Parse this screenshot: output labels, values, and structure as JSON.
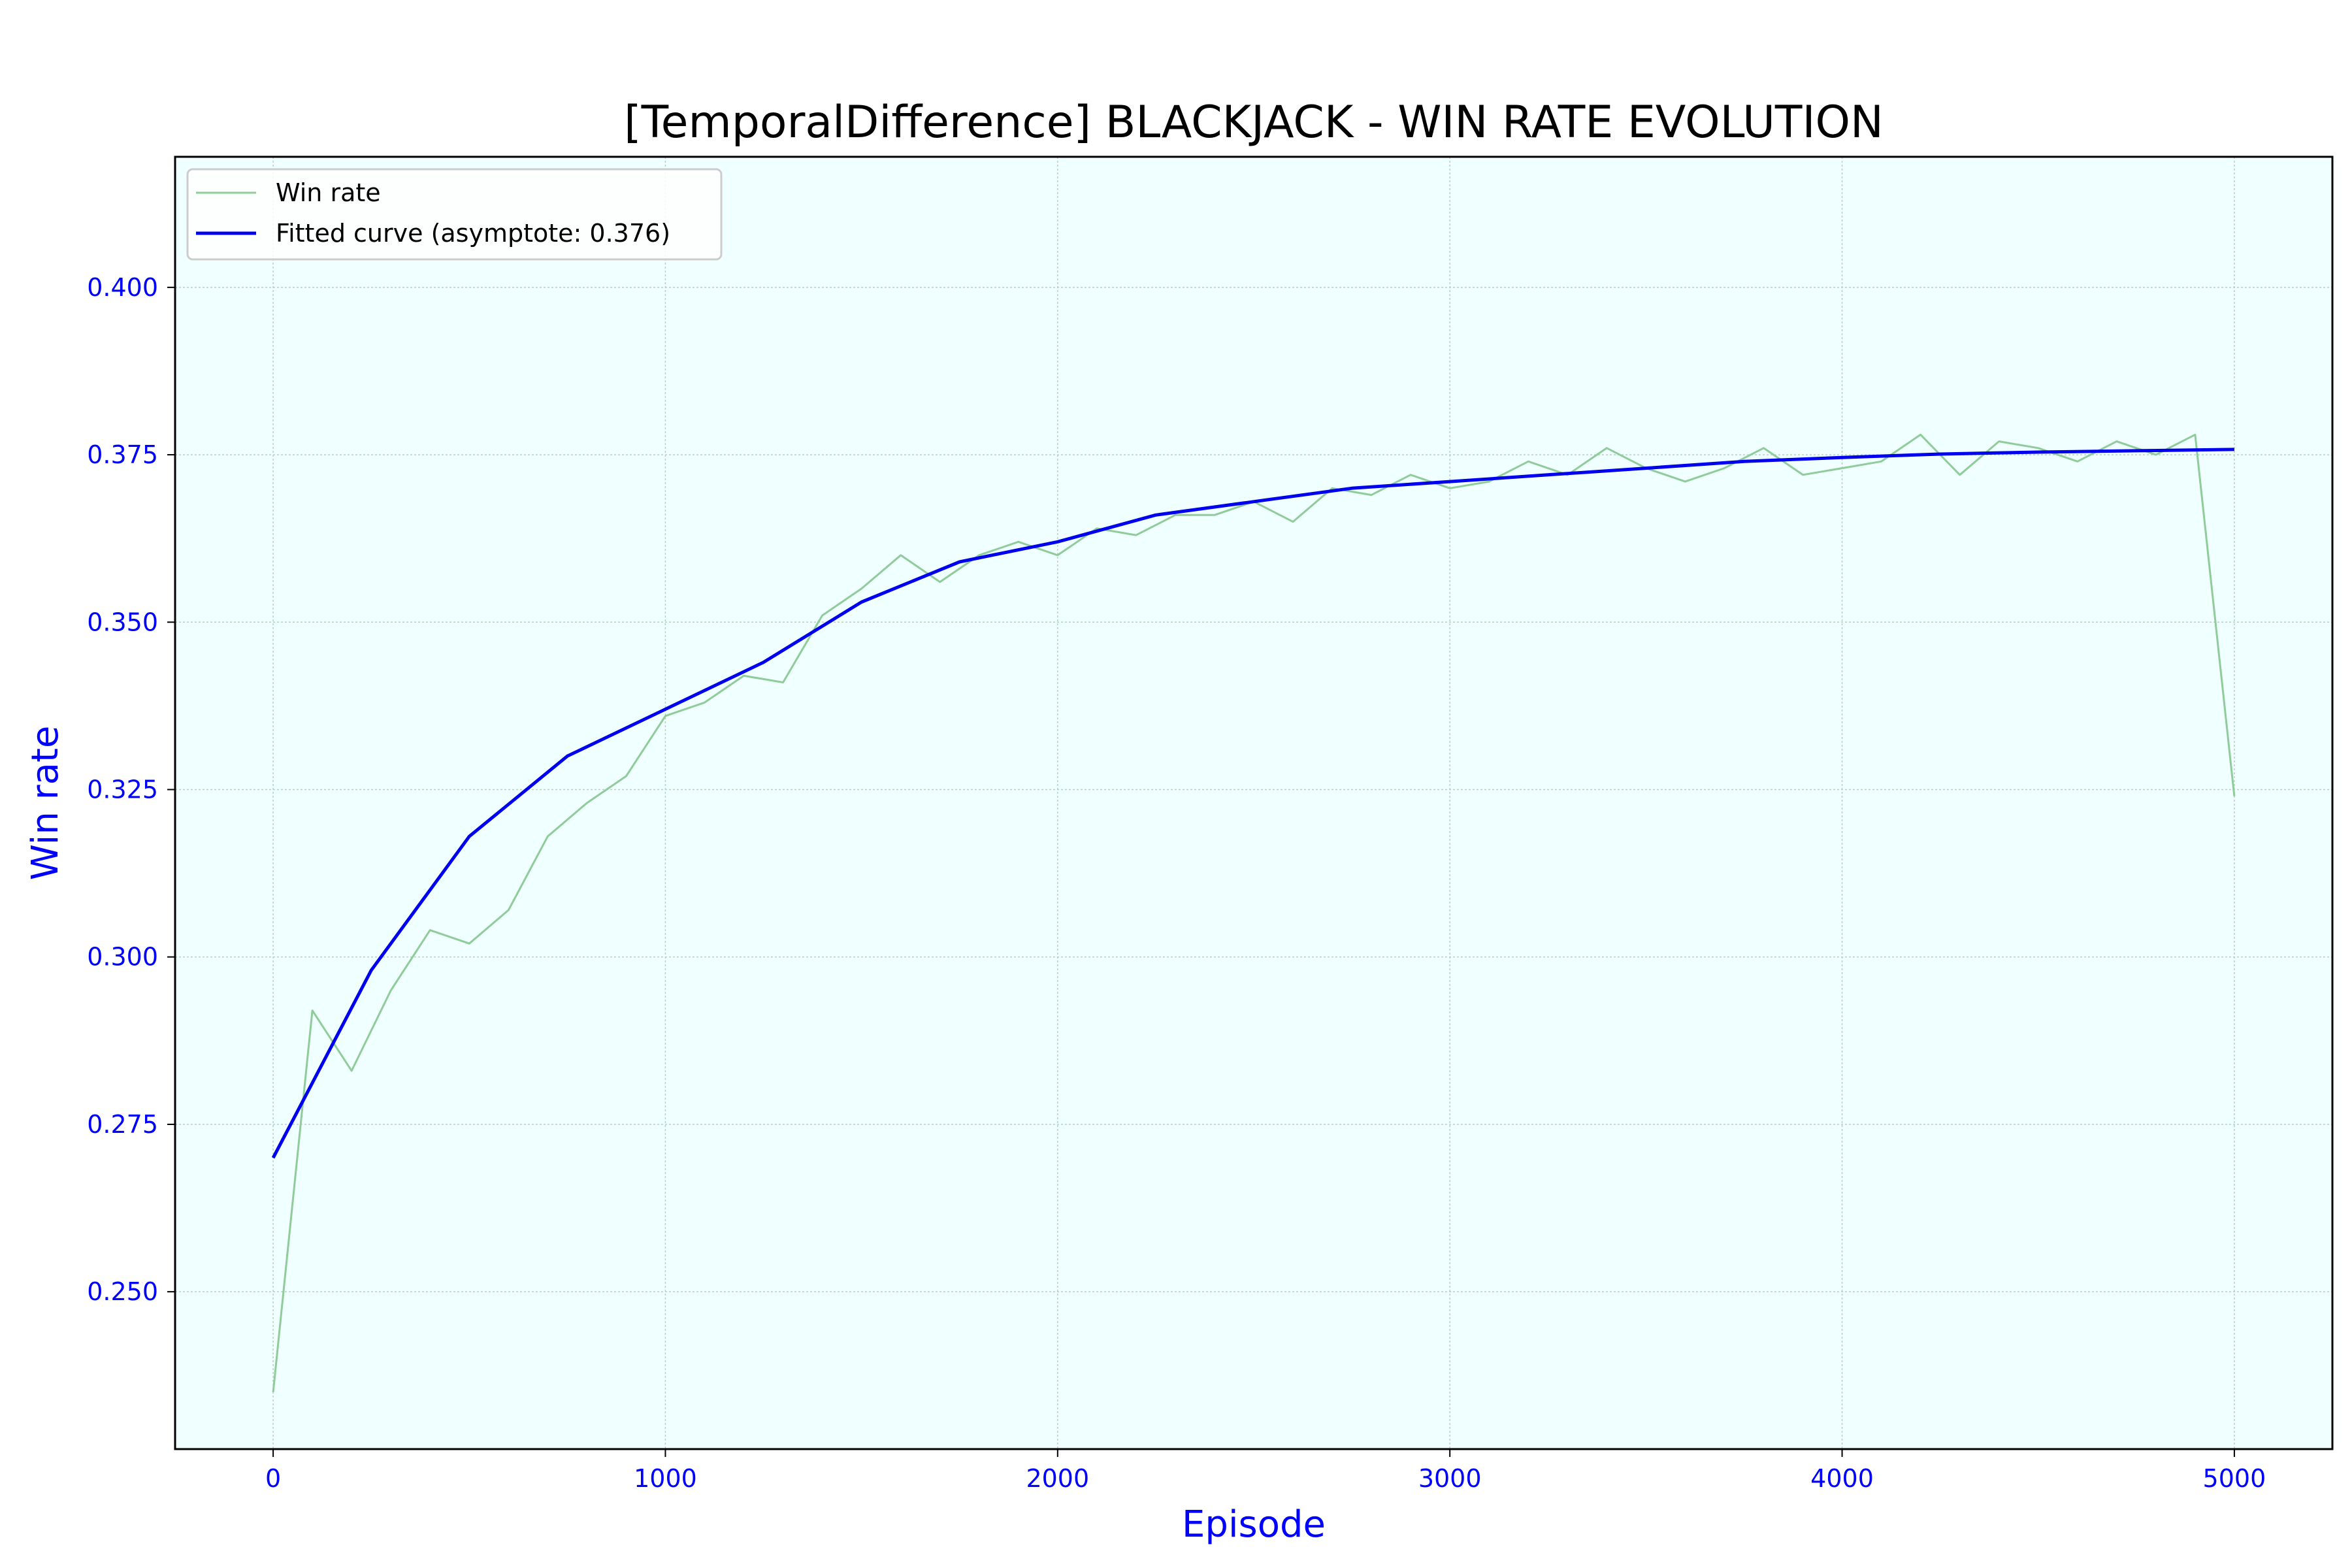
{
  "chart_data": {
    "type": "line",
    "title": "[TemporalDifference] BLACKJACK - WIN RATE EVOLUTION",
    "xlabel": "Episode",
    "ylabel": "Win rate",
    "xlim": [
      -250,
      5250
    ],
    "ylim": [
      0.2265,
      0.4195
    ],
    "xticks": [
      0,
      1000,
      2000,
      3000,
      4000,
      5000
    ],
    "xtick_labels": [
      "0",
      "1000",
      "2000",
      "3000",
      "4000",
      "5000"
    ],
    "yticks": [
      0.25,
      0.275,
      0.3,
      0.325,
      0.35,
      0.375,
      0.4
    ],
    "ytick_labels": [
      "0.250",
      "0.275",
      "0.300",
      "0.325",
      "0.350",
      "0.375",
      "0.400"
    ],
    "grid": true,
    "legend_position": "top-left",
    "plot_background": "#f0ffff",
    "series": [
      {
        "name": "Win rate",
        "color": "#8fcc9a",
        "x": [
          0,
          100,
          200,
          300,
          400,
          500,
          600,
          700,
          800,
          900,
          1000,
          1100,
          1200,
          1300,
          1400,
          1500,
          1600,
          1700,
          1800,
          1900,
          2000,
          2100,
          2200,
          2300,
          2400,
          2500,
          2600,
          2700,
          2800,
          2900,
          3000,
          3100,
          3200,
          3300,
          3400,
          3500,
          3600,
          3700,
          3800,
          3900,
          4000,
          4100,
          4200,
          4300,
          4400,
          4500,
          4600,
          4700,
          4800,
          4900,
          5000
        ],
        "values": [
          0.235,
          0.292,
          0.283,
          0.295,
          0.304,
          0.302,
          0.307,
          0.318,
          0.323,
          0.327,
          0.336,
          0.338,
          0.342,
          0.341,
          0.351,
          0.355,
          0.36,
          0.356,
          0.36,
          0.362,
          0.36,
          0.364,
          0.363,
          0.366,
          0.366,
          0.368,
          0.365,
          0.37,
          0.369,
          0.372,
          0.37,
          0.371,
          0.374,
          0.372,
          0.376,
          0.373,
          0.371,
          0.373,
          0.376,
          0.372,
          0.373,
          0.374,
          0.378,
          0.372,
          0.377,
          0.376,
          0.374,
          0.377,
          0.375,
          0.378,
          0.324
        ]
      },
      {
        "name": "Fitted curve (asymptote: 0.376)",
        "color": "#0000ee",
        "x": [
          0,
          250,
          500,
          750,
          1000,
          1250,
          1500,
          1750,
          2000,
          2250,
          2500,
          2750,
          3000,
          3250,
          3500,
          3750,
          4000,
          4250,
          4500,
          4750,
          5000
        ],
        "values": [
          0.27,
          0.298,
          0.318,
          0.33,
          0.337,
          0.344,
          0.353,
          0.359,
          0.362,
          0.366,
          0.368,
          0.37,
          0.371,
          0.372,
          0.373,
          0.374,
          0.3746,
          0.3751,
          0.3754,
          0.3756,
          0.3758
        ]
      }
    ]
  }
}
